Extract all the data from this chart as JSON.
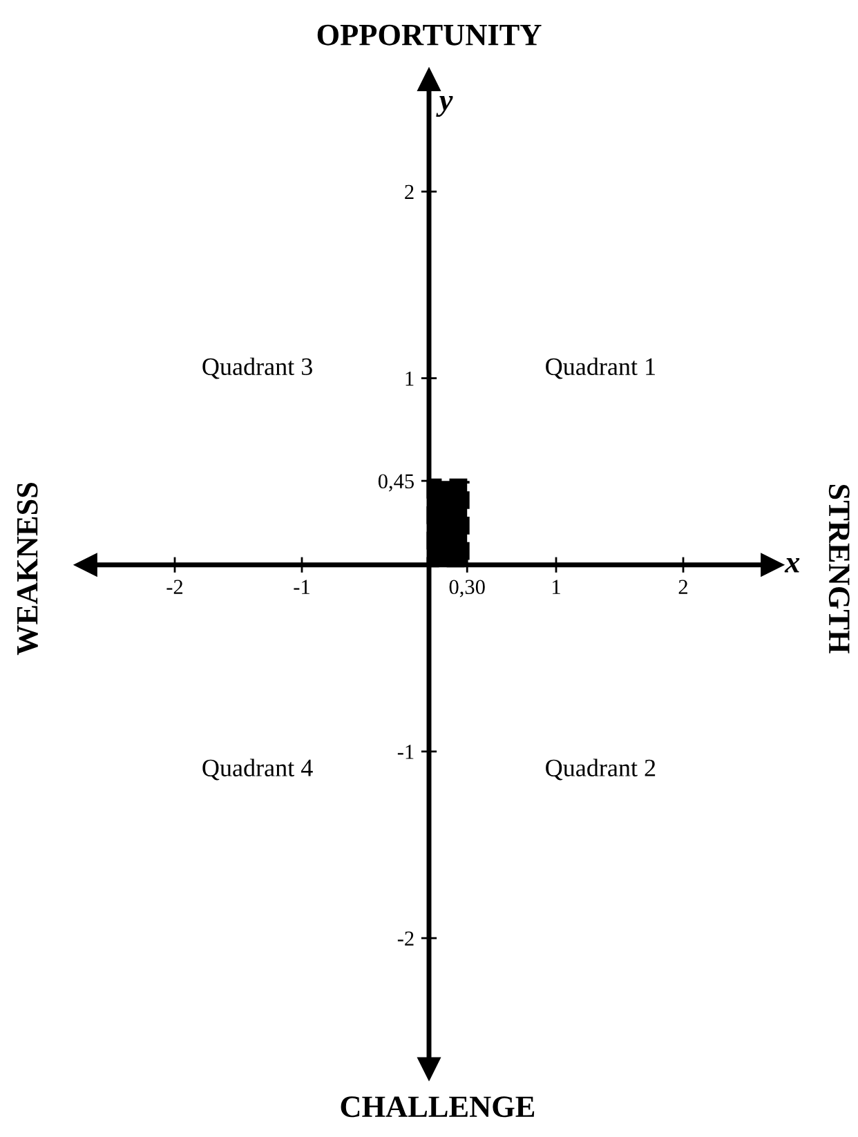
{
  "chart_data": {
    "type": "area",
    "color": "#000000",
    "line_style": "dashed",
    "title": "OPPORTUNITY",
    "xlabel": "CHALLENGE",
    "ylabel": "WEAKNESS",
    "y2label": "STRENGTH",
    "x": [
      0,
      0.3
    ],
    "values": [
      0.45,
      0.45
    ],
    "xlim": [
      -2.7,
      2.7
    ],
    "ylim": [
      -2.7,
      2.6
    ],
    "xticks": [
      -2,
      -1,
      {
        "value": 0.3,
        "label": "0,30"
      },
      1,
      2
    ],
    "yticks": [
      -2,
      -1,
      {
        "value": 0.45,
        "label": "0,45"
      },
      1,
      2
    ],
    "annotations": [
      "x",
      "y",
      "Quadrant 3",
      "Quadrant 1",
      "Quadrant 4",
      "Quadrant 2"
    ]
  }
}
